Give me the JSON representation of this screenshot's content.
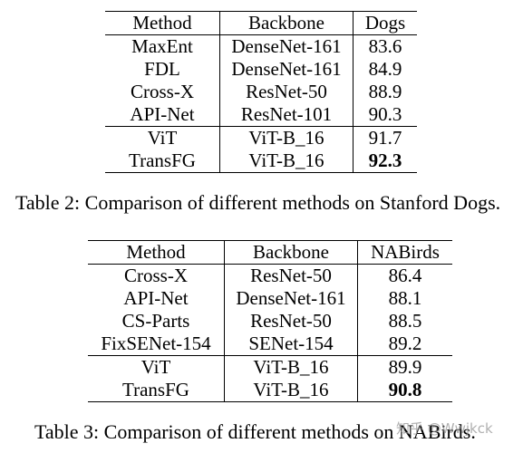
{
  "table2": {
    "headers": [
      "Method",
      "Backbone",
      "Dogs"
    ],
    "rows": [
      [
        "MaxEnt",
        "DenseNet-161",
        "83.6"
      ],
      [
        "FDL",
        "DenseNet-161",
        "84.9"
      ],
      [
        "Cross-X",
        "ResNet-50",
        "88.9"
      ],
      [
        "API-Net",
        "ResNet-101",
        "90.3"
      ],
      [
        "ViT",
        "ViT-B_16",
        "91.7"
      ],
      [
        "TransFG",
        "ViT-B_16",
        "92.3"
      ]
    ],
    "caption": "Table 2: Comparison of different methods on Stanford Dogs."
  },
  "table3": {
    "headers": [
      "Method",
      "Backbone",
      "NABirds"
    ],
    "rows": [
      [
        "Cross-X",
        "ResNet-50",
        "86.4"
      ],
      [
        "API-Net",
        "DenseNet-161",
        "88.1"
      ],
      [
        "CS-Parts",
        "ResNet-50",
        "88.5"
      ],
      [
        "FixSENet-154",
        "SENet-154",
        "89.2"
      ],
      [
        "ViT",
        "ViT-B_16",
        "89.9"
      ],
      [
        "TransFG",
        "ViT-B_16",
        "90.8"
      ]
    ],
    "caption": "Table 3: Comparison of different methods on NABirds."
  },
  "watermark": "知乎 @Wwjkck"
}
